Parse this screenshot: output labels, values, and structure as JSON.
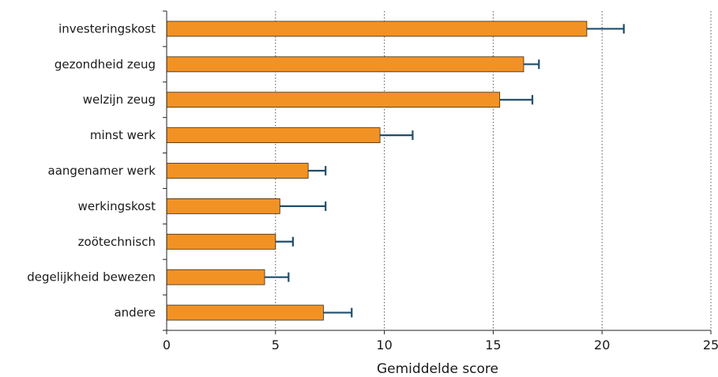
{
  "chart_data": {
    "type": "bar",
    "orientation": "horizontal",
    "categories": [
      "investeringskost",
      "gezondheid zeug",
      "welzijn zeug",
      "minst werk",
      "aangenamer werk",
      "werkingskost",
      "zoötechnisch",
      "degelijkheid bewezen",
      "andere"
    ],
    "values": [
      19.3,
      16.4,
      15.3,
      9.8,
      6.5,
      5.2,
      5.0,
      4.5,
      7.2
    ],
    "error_upper": [
      21.0,
      17.1,
      16.8,
      11.3,
      7.3,
      7.3,
      5.8,
      5.6,
      8.5
    ],
    "xlabel": "Gemiddelde score",
    "xlim": [
      0,
      25
    ],
    "xticks": [
      0,
      5,
      10,
      15,
      20,
      25
    ],
    "grid": "vertical dotted",
    "colors": {
      "bar": "#f39224",
      "bar_edge": "#3a2a10",
      "error": "#1f4e6b",
      "axis": "#222222",
      "grid": "#555555"
    }
  }
}
